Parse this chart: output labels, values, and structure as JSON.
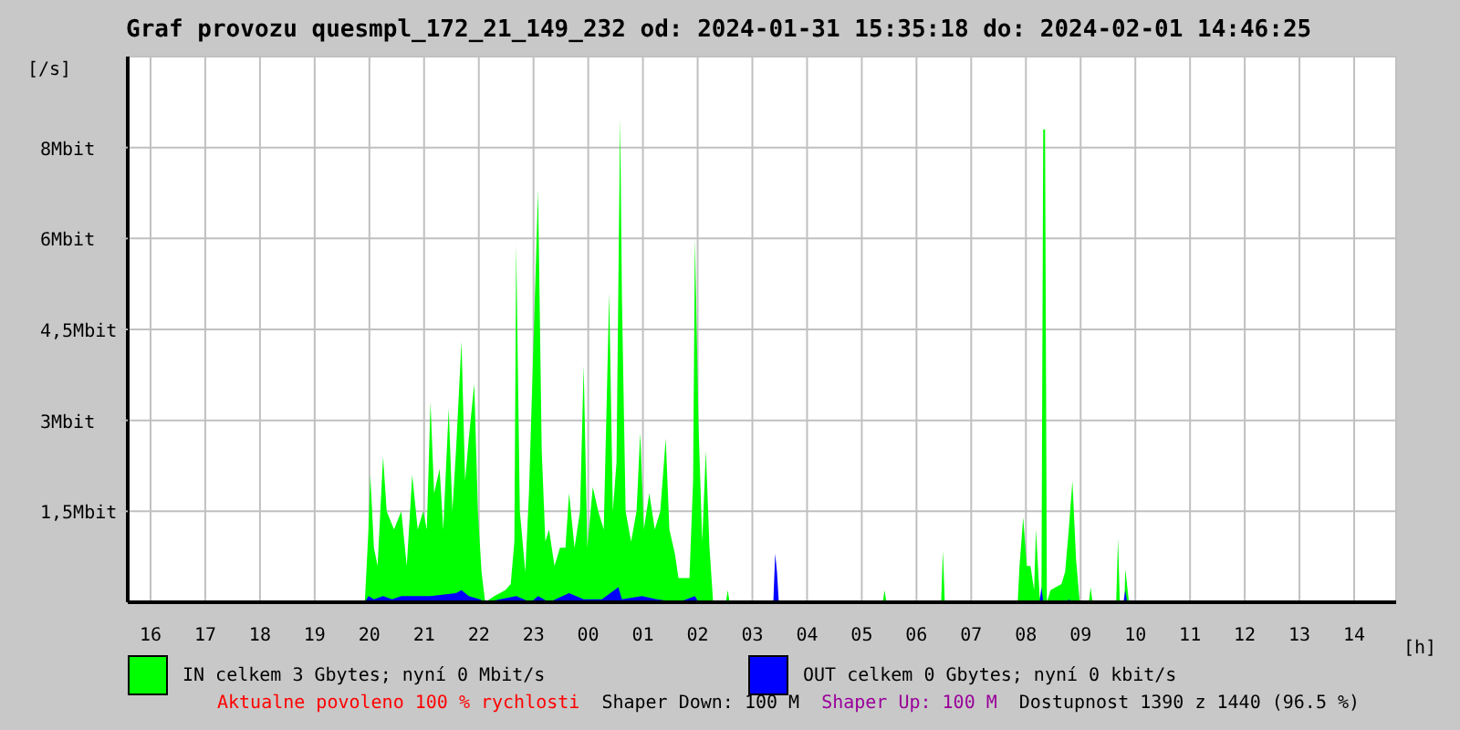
{
  "chart_data": {
    "type": "area",
    "title": "Graf provozu quesmpl_172_21_149_232 od: 2024-01-31 15:35:18 do: 2024-02-01 14:46:25",
    "xlabel": "[h]",
    "ylabel": "[/s]",
    "series": [
      {
        "name": "IN celkem 3 Gbytes; nyní 0 Mbit/s",
        "color": "#00ff00",
        "x": [
          "2024-01-31T19:55",
          "2024-01-31T19:59",
          "2024-01-31T20:01",
          "2024-01-31T20:05",
          "2024-01-31T20:09",
          "2024-01-31T20:15",
          "2024-01-31T20:19",
          "2024-01-31T20:27",
          "2024-01-31T20:35",
          "2024-01-31T20:41",
          "2024-01-31T20:47",
          "2024-01-31T20:53",
          "2024-01-31T20:59",
          "2024-01-31T21:03",
          "2024-01-31T21:07",
          "2024-01-31T21:11",
          "2024-01-31T21:17",
          "2024-01-31T21:21",
          "2024-01-31T21:27",
          "2024-01-31T21:31",
          "2024-01-31T21:35",
          "2024-01-31T21:41",
          "2024-01-31T21:45",
          "2024-01-31T21:49",
          "2024-01-31T21:55",
          "2024-01-31T21:59",
          "2024-01-31T22:03",
          "2024-01-31T22:07",
          "2024-01-31T22:17",
          "2024-01-31T22:29",
          "2024-01-31T22:35",
          "2024-01-31T22:39",
          "2024-01-31T22:41",
          "2024-01-31T22:45",
          "2024-01-31T22:51",
          "2024-01-31T22:55",
          "2024-01-31T23:01",
          "2024-01-31T23:05",
          "2024-01-31T23:09",
          "2024-01-31T23:13",
          "2024-01-31T23:17",
          "2024-01-31T23:23",
          "2024-01-31T23:29",
          "2024-01-31T23:35",
          "2024-01-31T23:39",
          "2024-01-31T23:45",
          "2024-01-31T23:51",
          "2024-01-31T23:55",
          "2024-01-31T23:59",
          "2024-02-01T00:05",
          "2024-02-01T00:11",
          "2024-02-01T00:17",
          "2024-02-01T00:23",
          "2024-02-01T00:27",
          "2024-02-01T00:31",
          "2024-02-01T00:35",
          "2024-02-01T00:37",
          "2024-02-01T00:41",
          "2024-02-01T00:47",
          "2024-02-01T00:53",
          "2024-02-01T00:57",
          "2024-02-01T01:01",
          "2024-02-01T01:07",
          "2024-02-01T01:13",
          "2024-02-01T01:19",
          "2024-02-01T01:25",
          "2024-02-01T01:29",
          "2024-02-01T01:35",
          "2024-02-01T01:39",
          "2024-02-01T01:51",
          "2024-02-01T01:55",
          "2024-02-01T01:57",
          "2024-02-01T02:01",
          "2024-02-01T02:05",
          "2024-02-01T02:09",
          "2024-02-01T02:13",
          "2024-02-01T02:17",
          "2024-02-01T02:31",
          "2024-02-01T02:33",
          "2024-02-01T02:35",
          "2024-02-01T05:23",
          "2024-02-01T05:25",
          "2024-02-01T05:27",
          "2024-02-01T06:27",
          "2024-02-01T06:29",
          "2024-02-01T06:31",
          "2024-02-01T07:51",
          "2024-02-01T07:53",
          "2024-02-01T07:57",
          "2024-02-01T08:01",
          "2024-02-01T08:05",
          "2024-02-01T08:09",
          "2024-02-01T08:11",
          "2024-02-01T08:15",
          "2024-02-01T08:17",
          "2024-02-01T08:19",
          "2024-02-01T08:21",
          "2024-02-01T08:23",
          "2024-02-01T08:27",
          "2024-02-01T08:39",
          "2024-02-01T08:43",
          "2024-02-01T08:47",
          "2024-02-01T08:51",
          "2024-02-01T08:55",
          "2024-02-01T08:59",
          "2024-02-01T09:09",
          "2024-02-01T09:11",
          "2024-02-01T09:13",
          "2024-02-01T09:39",
          "2024-02-01T09:41",
          "2024-02-01T09:43",
          "2024-02-01T09:48",
          "2024-02-01T09:49",
          "2024-02-01T09:53"
        ],
        "values": [
          0,
          1.2,
          2.1,
          0.9,
          0.6,
          2.4,
          1.5,
          1.2,
          1.5,
          0.6,
          2.1,
          1.2,
          1.5,
          1.2,
          3.3,
          1.8,
          2.2,
          1.2,
          3.2,
          1.5,
          2.5,
          4.3,
          2.0,
          2.7,
          3.6,
          1.5,
          0.5,
          0,
          0.1,
          0.2,
          0.3,
          1.0,
          5.9,
          1.5,
          0.5,
          1.8,
          4.8,
          6.8,
          2.5,
          1.0,
          1.2,
          0.6,
          0.9,
          0.9,
          1.8,
          0.9,
          1.5,
          3.9,
          0.9,
          1.9,
          1.5,
          1.2,
          5.1,
          1.5,
          2.3,
          8.0,
          5.0,
          1.5,
          1.0,
          1.5,
          2.8,
          1.2,
          1.8,
          1.2,
          1.5,
          2.7,
          1.2,
          0.8,
          0.4,
          0.4,
          2.0,
          6.0,
          2.9,
          1.0,
          2.5,
          0.9,
          0,
          0,
          0.2,
          0,
          0,
          0.2,
          0,
          0,
          0.85,
          0,
          0,
          0.6,
          1.4,
          0.6,
          0.6,
          0.2,
          1.2,
          0.1,
          0,
          7.8,
          7.8,
          0,
          0.2,
          0.3,
          0.5,
          1.2,
          2.0,
          0.7,
          0,
          0,
          0.25,
          0,
          0,
          1.05,
          0,
          0,
          0.55,
          0
        ]
      },
      {
        "name": "OUT celkem 0 Gbytes; nyní 0 kbit/s",
        "color": "#0000ff",
        "x": [
          "2024-01-31T19:55",
          "2024-01-31T19:59",
          "2024-01-31T20:05",
          "2024-01-31T20:15",
          "2024-01-31T20:25",
          "2024-01-31T20:35",
          "2024-01-31T21:07",
          "2024-01-31T21:35",
          "2024-01-31T21:41",
          "2024-01-31T21:49",
          "2024-01-31T22:01",
          "2024-01-31T22:07",
          "2024-01-31T22:41",
          "2024-01-31T22:57",
          "2024-01-31T23:05",
          "2024-01-31T23:17",
          "2024-01-31T23:39",
          "2024-01-31T23:55",
          "2024-02-01T00:15",
          "2024-02-01T00:33",
          "2024-02-01T00:37",
          "2024-02-01T00:59",
          "2024-02-01T01:15",
          "2024-02-01T01:39",
          "2024-02-01T01:57",
          "2024-02-01T02:01",
          "2024-02-01T03:23",
          "2024-02-01T03:25",
          "2024-02-01T03:27",
          "2024-02-01T03:29",
          "2024-02-01T08:15",
          "2024-02-01T08:17",
          "2024-02-01T08:19",
          "2024-02-01T08:45",
          "2024-02-01T08:47",
          "2024-02-01T08:51",
          "2024-02-01T09:47",
          "2024-02-01T09:49",
          "2024-02-01T09:51"
        ],
        "values": [
          0,
          0.1,
          0.05,
          0.1,
          0.05,
          0.1,
          0.1,
          0.15,
          0.2,
          0.1,
          0.05,
          0,
          0.1,
          0,
          0.1,
          0,
          0.15,
          0.05,
          0.05,
          0.25,
          0.05,
          0.1,
          0.05,
          0,
          0.1,
          0,
          0,
          0.8,
          0.5,
          0,
          0,
          0.25,
          0,
          0,
          0.05,
          0,
          0,
          0.2,
          0
        ]
      }
    ],
    "xlim": [
      "2024-01-31T15:35",
      "2024-02-01T14:46"
    ],
    "xticks": [
      {
        "value": "2024-01-31T16:00",
        "label": "16"
      },
      {
        "value": "2024-01-31T17:00",
        "label": "17"
      },
      {
        "value": "2024-01-31T18:00",
        "label": "18"
      },
      {
        "value": "2024-01-31T19:00",
        "label": "19"
      },
      {
        "value": "2024-01-31T20:00",
        "label": "20"
      },
      {
        "value": "2024-01-31T21:00",
        "label": "21"
      },
      {
        "value": "2024-01-31T22:00",
        "label": "22"
      },
      {
        "value": "2024-01-31T23:00",
        "label": "23"
      },
      {
        "value": "2024-02-01T00:00",
        "label": "00"
      },
      {
        "value": "2024-02-01T01:00",
        "label": "01"
      },
      {
        "value": "2024-02-01T02:00",
        "label": "02"
      },
      {
        "value": "2024-02-01T03:00",
        "label": "03"
      },
      {
        "value": "2024-02-01T04:00",
        "label": "04"
      },
      {
        "value": "2024-02-01T05:00",
        "label": "05"
      },
      {
        "value": "2024-02-01T06:00",
        "label": "06"
      },
      {
        "value": "2024-02-01T07:00",
        "label": "07"
      },
      {
        "value": "2024-02-01T08:00",
        "label": "08"
      },
      {
        "value": "2024-02-01T09:00",
        "label": "09"
      },
      {
        "value": "2024-02-01T10:00",
        "label": "10"
      },
      {
        "value": "2024-02-01T11:00",
        "label": "11"
      },
      {
        "value": "2024-02-01T12:00",
        "label": "12"
      },
      {
        "value": "2024-02-01T13:00",
        "label": "13"
      },
      {
        "value": "2024-02-01T14:00",
        "label": "14"
      }
    ],
    "ylim": [
      0,
      9
    ],
    "yticks": [
      {
        "value": 1.5,
        "label": "1,5Mbit"
      },
      {
        "value": 3,
        "label": "3Mbit"
      },
      {
        "value": 4.5,
        "label": "4,5Mbit"
      },
      {
        "value": 6,
        "label": "6Mbit"
      },
      {
        "value": 7.5,
        "label": "8Mbit"
      }
    ],
    "grid": true,
    "legend": "bottom",
    "annotations": [
      "Aktualne povoleno 100 % rychlosti",
      "Shaper Down: 100 M",
      "Shaper Up: 100 M",
      "Dostupnost 1390 z 1440 (96.5 %)"
    ]
  }
}
